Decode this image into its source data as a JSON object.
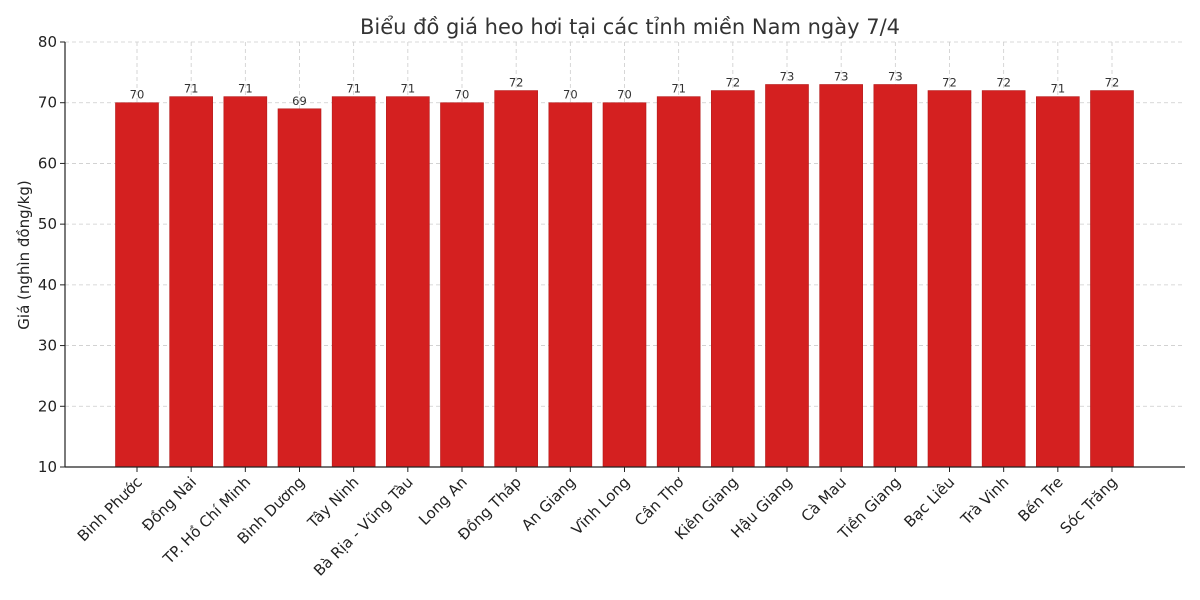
{
  "chart_data": {
    "type": "bar",
    "title": "Biểu đồ giá heo hơi tại các tỉnh miền Nam ngày 7/4",
    "xlabel": "",
    "ylabel": "Giá (nghìn đồng/kg)",
    "ylim": [
      10,
      80
    ],
    "yticks": [
      10,
      20,
      30,
      40,
      50,
      60,
      70,
      80
    ],
    "grid": true,
    "bar_color": "#d42020",
    "categories": [
      "Bình Phước",
      "Đồng Nai",
      "TP. Hồ Chí Minh",
      "Bình Dương",
      "Tây Ninh",
      "Bà Rịa - Vũng Tàu",
      "Long An",
      "Đồng Tháp",
      "An Giang",
      "Vĩnh Long",
      "Cần Thơ",
      "Kiên Giang",
      "Hậu Giang",
      "Cà Mau",
      "Tiền Giang",
      "Bạc Liêu",
      "Trà Vinh",
      "Bến Tre",
      "Sóc Trăng"
    ],
    "values": [
      70,
      71,
      71,
      69,
      71,
      71,
      70,
      72,
      70,
      70,
      71,
      72,
      73,
      73,
      73,
      72,
      72,
      71,
      72
    ],
    "data_labels": [
      "70",
      "71",
      "71",
      "69",
      "71",
      "71",
      "70",
      "72",
      "70",
      "70",
      "71",
      "72",
      "73",
      "73",
      "73",
      "72",
      "72",
      "71",
      "72"
    ]
  }
}
